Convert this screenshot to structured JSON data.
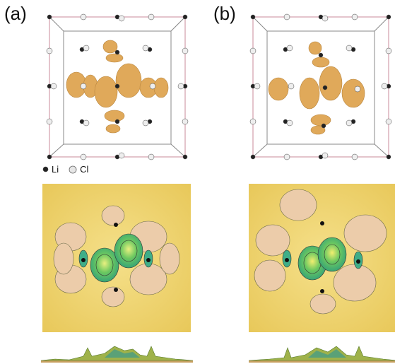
{
  "figure": {
    "panels": [
      {
        "label": "(a)"
      },
      {
        "label": "(b)"
      }
    ],
    "legend": {
      "items": [
        {
          "label": "Li",
          "color": "#222222"
        },
        {
          "label": "Cl",
          "color": "#e6e6e6"
        }
      ]
    },
    "colors": {
      "isosurface": "#e0a95a",
      "surface_base": "#f2dc78",
      "lobe_pink": "#eac8a2",
      "lobe_green": "#4fbf6a",
      "box_edge": "#c98a9a"
    }
  }
}
